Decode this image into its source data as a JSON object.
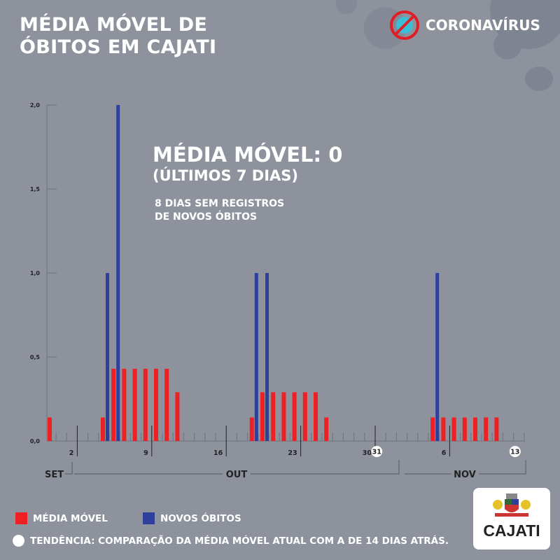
{
  "header": {
    "title_line1": "MÉDIA MÓVEL DE",
    "title_line2": "ÓBITOS EM CAJATI",
    "brand": "CORONAVÍRUS"
  },
  "annotation": {
    "headline": "MÉDIA MÓVEL: 0",
    "subheadline": "(ÚLTIMOS 7 DIAS)",
    "note_line1": "8 DIAS SEM REGISTROS",
    "note_line2": "DE NOVOS ÓBITOS"
  },
  "legend": {
    "moving_avg": "MÉDIA MÓVEL",
    "new_deaths": "NOVOS ÓBITOS",
    "trend": "TENDÊNCIA: COMPARAÇÃO DA MÉDIA MÓVEL ATUAL COM A DE 14 DIAS ATRÁS."
  },
  "logo": {
    "name": "CAJATI"
  },
  "colors": {
    "moving_avg": "#ee2024",
    "new_deaths": "#2e3f9c",
    "background": "#8e929c"
  },
  "chart_data": {
    "type": "bar",
    "title": "Média móvel de óbitos em Cajati",
    "ylim": [
      0,
      2
    ],
    "yticks": [
      "0,0",
      "0,5",
      "1,0",
      "1,5",
      "2,0"
    ],
    "ytick_values": [
      0,
      0.5,
      1,
      1.5,
      2
    ],
    "x_start": "SET 30",
    "days": 45,
    "xtick_labels": [
      {
        "i": 2,
        "label": "2"
      },
      {
        "i": 9,
        "label": "9"
      },
      {
        "i": 16,
        "label": "16"
      },
      {
        "i": 23,
        "label": "23"
      },
      {
        "i": 30,
        "label": "30"
      },
      {
        "i": 31,
        "label": "31",
        "circled": true
      },
      {
        "i": 37,
        "label": "6"
      },
      {
        "i": 44,
        "label": "13",
        "circled": true
      }
    ],
    "months": [
      "SET",
      "OUT",
      "NOV"
    ],
    "series": [
      {
        "name": "MÉDIA MÓVEL",
        "values": [
          0.14,
          0,
          0,
          0,
          0,
          0.14,
          0.43,
          0.43,
          0.43,
          0.43,
          0.43,
          0.43,
          0.29,
          0,
          0,
          0,
          0,
          0,
          0,
          0.14,
          0.29,
          0.29,
          0.29,
          0.29,
          0.29,
          0.29,
          0.14,
          0,
          0,
          0,
          0,
          0,
          0,
          0,
          0,
          0,
          0.14,
          0.14,
          0.14,
          0.14,
          0.14,
          0.14,
          0.14,
          0,
          0
        ]
      },
      {
        "name": "NOVOS ÓBITOS",
        "values": [
          0,
          0,
          0,
          0,
          0,
          1,
          2,
          0,
          0,
          0,
          0,
          0,
          0,
          0,
          0,
          0,
          0,
          0,
          0,
          1,
          1,
          0,
          0,
          0,
          0,
          0,
          0,
          0,
          0,
          0,
          0,
          0,
          0,
          0,
          0,
          0,
          1,
          0,
          0,
          0,
          0,
          0,
          0,
          0,
          0
        ]
      }
    ]
  }
}
